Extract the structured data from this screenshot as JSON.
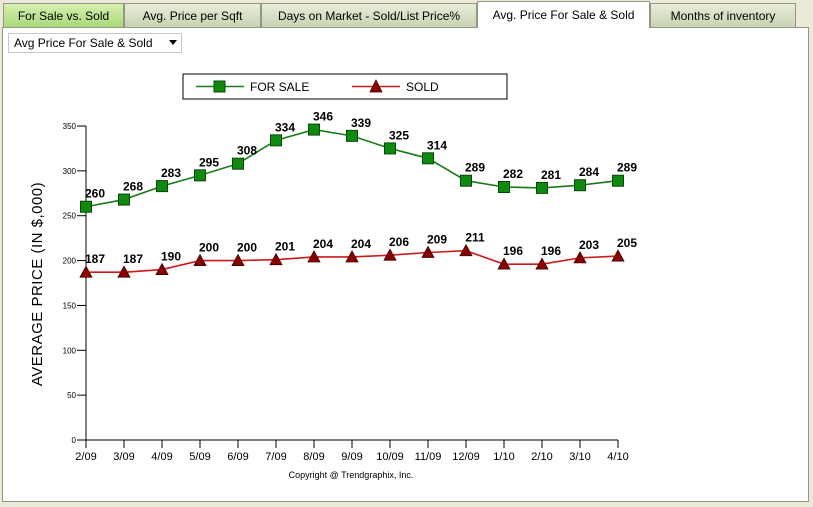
{
  "tabs": [
    {
      "label": "For Sale vs. Sold",
      "active": false
    },
    {
      "label": "Avg. Price per Sqft",
      "active": false
    },
    {
      "label": "Days on Market - Sold/List Price%",
      "active": false
    },
    {
      "label": "Avg. Price For Sale & Sold",
      "active": true
    },
    {
      "label": "Months of inventory",
      "active": false
    }
  ],
  "dropdown": {
    "selected": "Avg Price For Sale & Sold"
  },
  "copyright": "Copyright @ Trendgraphix, Inc.",
  "colors": {
    "for_sale": "#1a7a1a",
    "sold": "#cc1a1a",
    "for_sale_marker": "#0f8a0f",
    "sold_marker": "#8a0000"
  },
  "chart_data": {
    "type": "line",
    "title": "",
    "xlabel": "",
    "ylabel": "AVERAGE PRICE (IN $,000)",
    "ylim": [
      0,
      350
    ],
    "yticks": [
      0,
      50,
      100,
      150,
      200,
      250,
      300,
      350
    ],
    "categories": [
      "2/09",
      "3/09",
      "4/09",
      "5/09",
      "6/09",
      "7/09",
      "8/09",
      "9/09",
      "10/09",
      "11/09",
      "12/09",
      "1/10",
      "2/10",
      "3/10",
      "4/10"
    ],
    "legend_position": "top",
    "grid": false,
    "series": [
      {
        "name": "FOR SALE",
        "marker": "square",
        "values": [
          260,
          268,
          283,
          295,
          308,
          334,
          346,
          339,
          325,
          314,
          289,
          282,
          281,
          284,
          289
        ]
      },
      {
        "name": "SOLD",
        "marker": "triangle",
        "values": [
          187,
          187,
          190,
          200,
          200,
          201,
          204,
          204,
          206,
          209,
          211,
          196,
          196,
          203,
          205
        ]
      }
    ]
  }
}
